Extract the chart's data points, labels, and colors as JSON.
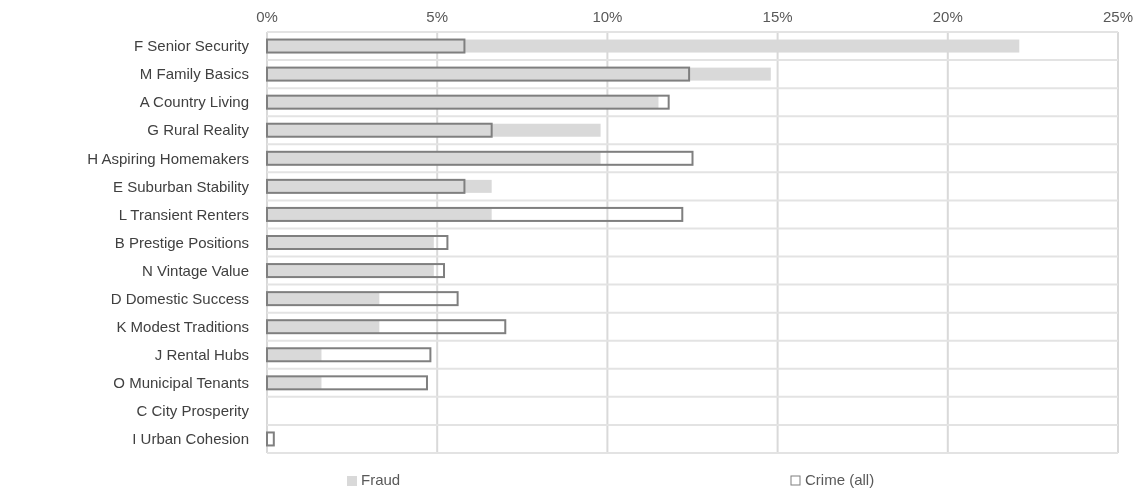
{
  "chart_data": {
    "type": "bar",
    "orientation": "horizontal",
    "categories": [
      "F Senior Security",
      "M Family Basics",
      "A Country Living",
      "G Rural Reality",
      "H Aspiring Homemakers",
      "E Suburban Stability",
      "L Transient Renters",
      "B Prestige Positions",
      "N Vintage Value",
      "D Domestic Success",
      "K Modest Traditions",
      "J Rental Hubs",
      "O Municipal Tenants",
      "C City Prosperity",
      "I Urban Cohesion"
    ],
    "series": [
      {
        "name": "Fraud",
        "color": "#d9d9d9",
        "values": [
          22.1,
          14.8,
          11.5,
          9.8,
          9.8,
          6.6,
          6.6,
          4.9,
          4.9,
          3.3,
          3.3,
          1.6,
          1.6,
          0,
          0
        ]
      },
      {
        "name": "Crime (all)",
        "color": "#7f7f7f",
        "values": [
          5.8,
          12.4,
          11.8,
          6.6,
          12.5,
          5.8,
          12.2,
          5.3,
          5.2,
          5.6,
          7.0,
          4.8,
          4.7,
          0,
          0.2
        ]
      }
    ],
    "xlim": [
      0,
      25
    ],
    "xticks": [
      {
        "value": 0,
        "label": "0%"
      },
      {
        "value": 5,
        "label": "5%"
      },
      {
        "value": 10,
        "label": "10%"
      },
      {
        "value": 15,
        "label": "15%"
      },
      {
        "value": 20,
        "label": "20%"
      },
      {
        "value": 25,
        "label": "25%"
      }
    ],
    "grid": true,
    "legend": "bottom"
  }
}
